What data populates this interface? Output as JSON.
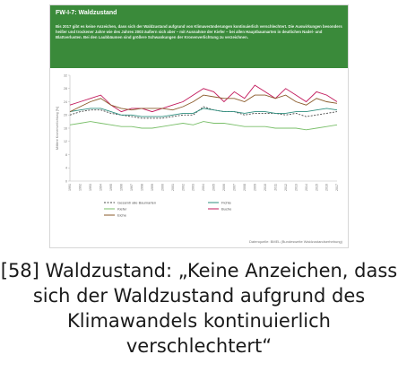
{
  "panel": {
    "title": "FW-I-7: Waldzustand",
    "text": "Bis 2017 gibt es keine Anzeichen, dass sich der Waldzustand aufgrund von Klimaveränderungen kontinuierlich verschlechtert. Die Auswirkungen besonders heißer und trockener Jahre wie des Jahres 2003 äußern sich aber – mit Ausnahme der Kiefer – bei allen Hauptbaumarten in deutlichen Nadel- und Blattverlusten. Bei den Laubbäumen sind größere Schwankungen der Kronenverlichtung zu verzeichnen.",
    "source": "Datenquelle: BMEL (Bundesweite Waldzustandserhebung)"
  },
  "caption": "[58] Waldzustand: „Keine Anzeichen, dass sich der Waldzustand aufgrund des Klimawandels kontinuierlich verschlechtert“",
  "chart_data": {
    "type": "line",
    "ylabel": "Mittlere Kronenverlichtung [%]",
    "ylim": [
      0,
      32
    ],
    "yticks": [
      0,
      4,
      8,
      12,
      16,
      20,
      24,
      28,
      32
    ],
    "x": [
      1991,
      1992,
      1993,
      1994,
      1995,
      1996,
      1997,
      1998,
      1999,
      2000,
      2001,
      2002,
      2003,
      2004,
      2005,
      2006,
      2007,
      2008,
      2009,
      2010,
      2011,
      2012,
      2013,
      2014,
      2015,
      2016,
      2017
    ],
    "series": [
      {
        "name": "Gesamt/ alle Baumarten",
        "color": "#4a4a4a",
        "dash": "2,1.5",
        "values": [
          20,
          21,
          21.5,
          21.5,
          20.5,
          20,
          19.5,
          19,
          19,
          19,
          19.5,
          20,
          20,
          22.5,
          21.5,
          21,
          21,
          20,
          20.5,
          20.5,
          20.5,
          20,
          20.5,
          19.5,
          20,
          20.5,
          21
        ]
      },
      {
        "name": "Fichte",
        "color": "#2f8f7f",
        "dash": "",
        "values": [
          21,
          21.5,
          22,
          22,
          21,
          20,
          20,
          19.5,
          19.5,
          19.5,
          20,
          20.5,
          20.5,
          22,
          21.5,
          21,
          21,
          20.5,
          21,
          21,
          20.5,
          20.5,
          21,
          21,
          21.5,
          22,
          21.5
        ]
      },
      {
        "name": "Kiefer",
        "color": "#7abf6a",
        "dash": "",
        "values": [
          17,
          17.5,
          18,
          17.5,
          17,
          16.5,
          16.5,
          16,
          16,
          16.5,
          17,
          17.5,
          17,
          18,
          17.5,
          17.5,
          17,
          16.5,
          16.5,
          16.5,
          16,
          16,
          16,
          15.5,
          16,
          16.5,
          17
        ]
      },
      {
        "name": "Buche",
        "color": "#c2185b",
        "dash": "",
        "values": [
          23,
          24,
          25,
          26,
          23,
          21,
          22,
          22,
          21,
          22,
          23,
          24,
          26,
          28,
          27,
          24,
          27,
          25,
          29,
          27,
          25,
          28,
          26,
          24,
          27,
          26,
          24
        ]
      },
      {
        "name": "Eiche",
        "color": "#8a5a2a",
        "dash": "",
        "values": [
          21,
          22.5,
          24,
          25,
          23,
          22,
          21.5,
          22,
          22,
          22,
          21.5,
          22.5,
          24,
          26,
          25.5,
          25,
          25,
          24,
          26,
          26,
          25,
          26,
          24,
          23,
          25,
          24,
          23.5
        ]
      }
    ],
    "legend": [
      {
        "label": "Gesamt/ alle Baumarten",
        "color": "#4a4a4a",
        "dash": "2,1.5"
      },
      {
        "label": "Kiefer",
        "color": "#7abf6a",
        "dash": ""
      },
      {
        "label": "Eiche",
        "color": "#8a5a2a",
        "dash": ""
      },
      {
        "label": "Fichte",
        "color": "#2f8f7f",
        "dash": ""
      },
      {
        "label": "Buche",
        "color": "#c2185b",
        "dash": ""
      }
    ],
    "legend_placement": "bottom",
    "grid": false
  }
}
